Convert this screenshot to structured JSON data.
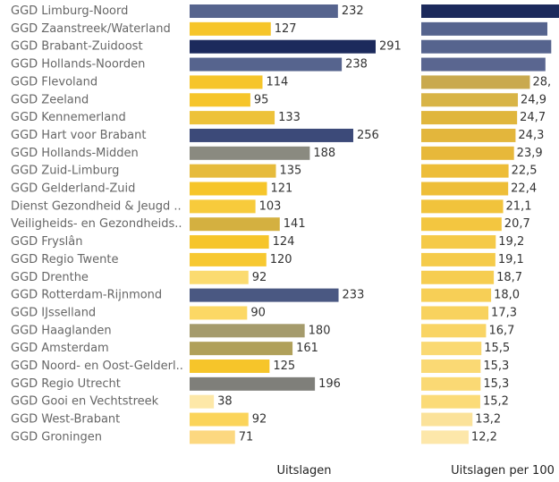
{
  "chart_data": [
    {
      "type": "bar",
      "orientation": "horizontal",
      "xlabel": "Uitslagen",
      "categories": [
        "GGD Limburg-Noord",
        "GGD Zaanstreek/Waterland",
        "GGD Brabant-Zuidoost",
        "GGD Hollands-Noorden",
        "GGD Flevoland",
        "GGD Zeeland",
        "GGD Kennemerland",
        "GGD Hart voor Brabant",
        "GGD Hollands-Midden",
        "GGD Zuid-Limburg",
        "GGD Gelderland-Zuid",
        "Dienst Gezondheid & Jeugd ..",
        "Veiligheids- en Gezondheids..",
        "GGD Fryslân",
        "GGD Regio Twente",
        "GGD Drenthe",
        "GGD Rotterdam-Rijnmond",
        "GGD IJsselland",
        "GGD Haaglanden",
        "GGD Amsterdam",
        "GGD Noord- en Oost-Gelderl..",
        "GGD Regio Utrecht",
        "GGD Gooi en Vechtstreek",
        "GGD West-Brabant",
        "GGD Groningen"
      ],
      "values": [
        232,
        127,
        291,
        238,
        114,
        95,
        133,
        256,
        188,
        135,
        121,
        103,
        141,
        124,
        120,
        92,
        233,
        90,
        180,
        161,
        125,
        196,
        38,
        92,
        71
      ],
      "value_labels": [
        "232",
        "127",
        "291",
        "238",
        "114",
        "95",
        "133",
        "256",
        "188",
        "135",
        "121",
        "103",
        "141",
        "124",
        "120",
        "92",
        "233",
        "90",
        "180",
        "161",
        "125",
        "196",
        "38",
        "92",
        "71"
      ],
      "colors": [
        "#56648e",
        "#f6c52a",
        "#1c2a5c",
        "#56648e",
        "#f6c52a",
        "#f6c52a",
        "#edc23a",
        "#3c4a79",
        "#8a8a80",
        "#e6bb3c",
        "#f6c52a",
        "#f7cb3c",
        "#d4b040",
        "#f6c52a",
        "#f7c830",
        "#fbdb70",
        "#4a5882",
        "#fcd865",
        "#a59b6c",
        "#b0a05a",
        "#f6c52a",
        "#7f7f7a",
        "#fde8a8",
        "#fbd45a",
        "#fcd880"
      ],
      "xlim": [
        0,
        291
      ]
    },
    {
      "type": "bar",
      "orientation": "horizontal",
      "xlabel": "Uitslagen per 100",
      "categories": [
        "GGD Limburg-Noord",
        "GGD Zaanstreek/Waterland",
        "GGD Brabant-Zuidoost",
        "GGD Hollands-Noorden",
        "GGD Flevoland",
        "GGD Zeeland",
        "GGD Kennemerland",
        "GGD Hart voor Brabant",
        "GGD Hollands-Midden",
        "GGD Zuid-Limburg",
        "GGD Gelderland-Zuid",
        "Dienst Gezondheid & Jeugd ..",
        "Veiligheids- en Gezondheids..",
        "GGD Fryslân",
        "GGD Regio Twente",
        "GGD Drenthe",
        "GGD Rotterdam-Rijnmond",
        "GGD IJsselland",
        "GGD Haaglanden",
        "GGD Amsterdam",
        "GGD Noord- en Oost-Gelderl..",
        "GGD Regio Utrecht",
        "GGD Gooi en Vechtstreek",
        "GGD West-Brabant",
        "GGD Groningen"
      ],
      "values": [
        35.5,
        32.5,
        33.5,
        32.0,
        28.0,
        24.9,
        24.7,
        24.3,
        23.9,
        22.5,
        22.4,
        21.1,
        20.7,
        19.2,
        19.1,
        18.7,
        18.0,
        17.3,
        16.7,
        15.5,
        15.3,
        15.3,
        15.2,
        13.2,
        12.2
      ],
      "value_labels": [
        "",
        "",
        "",
        "",
        "28,",
        "24,9",
        "24,7",
        "24,3",
        "23,9",
        "22,5",
        "22,4",
        "21,1",
        "20,7",
        "19,2",
        "19,1",
        "18,7",
        "18,0",
        "17,3",
        "16,7",
        "15,5",
        "15,3",
        "15,3",
        "15,2",
        "13,2",
        "12,2"
      ],
      "colors": [
        "#1c2a5c",
        "#56648e",
        "#56648e",
        "#5a6690",
        "#c9a94e",
        "#d8b446",
        "#e0b63c",
        "#e3b63c",
        "#e7b83a",
        "#edbd38",
        "#eebe38",
        "#f1c33c",
        "#f3c640",
        "#f5ca48",
        "#f5cb4a",
        "#f6cd50",
        "#f7cf56",
        "#f8d25e",
        "#f9d464",
        "#fad972",
        "#fad974",
        "#fad974",
        "#fbdb78",
        "#fbe29a",
        "#fde7aa"
      ],
      "xlim": [
        0,
        35.5
      ]
    }
  ]
}
